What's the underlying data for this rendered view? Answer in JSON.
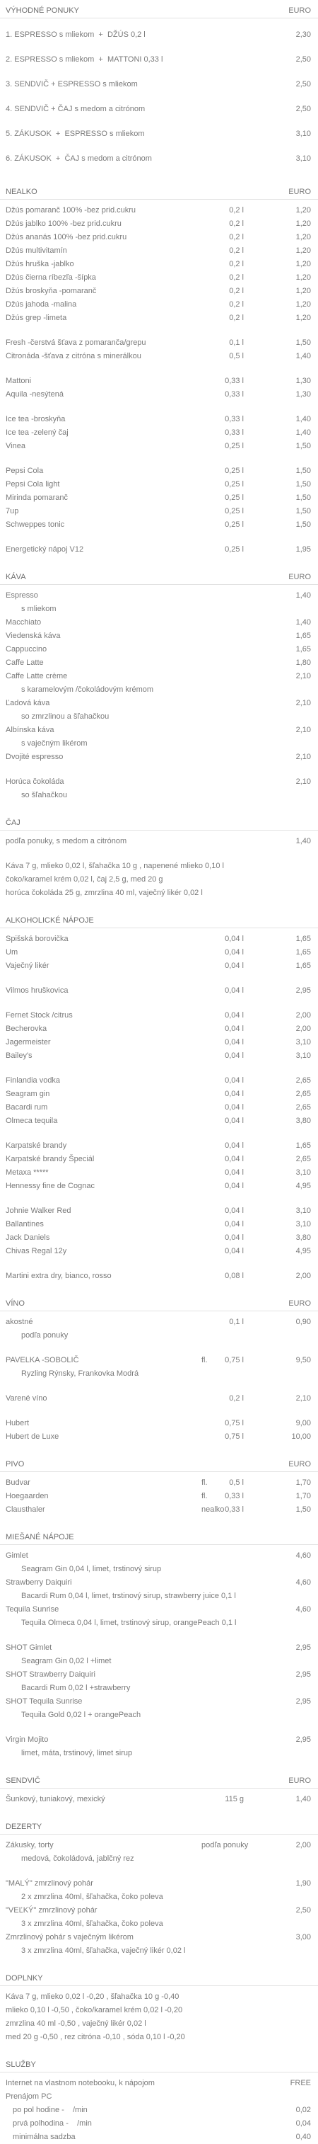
{
  "sections": [
    {
      "title": "VÝHODNÉ PONUKY",
      "currency": "EURO",
      "groups": [
        [
          {
            "name": "1. ESPRESSO s mliekom  +  DŽÚS 0,2 l",
            "price": "2,30"
          },
          {
            "name": "2. ESPRESSO s mliekom  +  MATTONI 0,33 l",
            "price": "2,50"
          },
          {
            "name": "3. SENDVIČ + ESPRESSO s mliekom",
            "price": "2,50"
          },
          {
            "name": "4. SENDVIČ + ČAJ s medom a citrónom",
            "price": "2,50"
          },
          {
            "name": "5. ZÁKUSOK  +  ESPRESSO s mliekom",
            "price": "3,10"
          },
          {
            "name": "6. ZÁKUSOK  +  ČAJ s medom a citrónom",
            "price": "3,10"
          }
        ]
      ]
    },
    {
      "title": "NEALKO",
      "currency": "EURO",
      "groups": [
        [
          {
            "name": "Džús pomaranč 100% -bez prid.cukru",
            "size": "0,2 l",
            "price": "1,20"
          },
          {
            "name": "Džús jablko 100% -bez prid.cukru",
            "size": "0,2 l",
            "price": "1,20"
          },
          {
            "name": "Džús ananás 100% -bez prid.cukru",
            "size": "0,2 l",
            "price": "1,20"
          },
          {
            "name": "Džús multivitamín",
            "size": "0,2 l",
            "price": "1,20"
          },
          {
            "name": "Džús hruška -jablko",
            "size": "0,2 l",
            "price": "1,20"
          },
          {
            "name": "Džús čierna ríbezľa -šípka",
            "size": "0,2 l",
            "price": "1,20"
          },
          {
            "name": "Džús broskyňa -pomaranč",
            "size": "0,2 l",
            "price": "1,20"
          },
          {
            "name": "Džús jahoda -malina",
            "size": "0,2 l",
            "price": "1,20"
          },
          {
            "name": "Džús grep -limeta",
            "size": "0,2 l",
            "price": "1,20"
          }
        ],
        [
          {
            "name": "Fresh -čerstvá šťava z pomaranča/grepu",
            "size": "0,1 l",
            "price": "1,50"
          },
          {
            "name": "Citronáda -šťava z citróna s minerálkou",
            "size": "0,5 l",
            "price": "1,40"
          }
        ],
        [
          {
            "name": "Mattoni",
            "size": "0,33 l",
            "price": "1,30"
          },
          {
            "name": "Aquila -nesýtená",
            "size": "0,33 l",
            "price": "1,30"
          }
        ],
        [
          {
            "name": "Ice tea -broskyňa",
            "size": "0,33 l",
            "price": "1,40"
          },
          {
            "name": "Ice tea -zelený čaj",
            "size": "0,33 l",
            "price": "1,40"
          },
          {
            "name": "Vinea",
            "size": "0,25 l",
            "price": "1,50"
          }
        ],
        [
          {
            "name": "Pepsi Cola",
            "size": "0,25 l",
            "price": "1,50"
          },
          {
            "name": "Pepsi Cola light",
            "size": "0,25 l",
            "price": "1,50"
          },
          {
            "name": "Mirinda pomaranč",
            "size": "0,25 l",
            "price": "1,50"
          },
          {
            "name": "7up",
            "size": "0,25 l",
            "price": "1,50"
          },
          {
            "name": "Schweppes tonic",
            "size": "0,25 l",
            "price": "1,50"
          }
        ],
        [
          {
            "name": "Energetický nápoj V12",
            "size": "0,25 l",
            "price": "1,95"
          }
        ]
      ]
    },
    {
      "title": "KÁVA",
      "currency": "EURO",
      "groups": [
        [
          {
            "name": "Espresso",
            "price": "1,40",
            "notes": [
              "s mliekom"
            ]
          },
          {
            "name": "Macchiato",
            "price": "1,40"
          },
          {
            "name": "Viedenská káva",
            "price": "1,65"
          },
          {
            "name": "Cappuccino",
            "price": "1,65"
          },
          {
            "name": "Caffe Latte",
            "price": "1,80"
          },
          {
            "name": "Caffe Latte crème",
            "price": "2,10",
            "notes": [
              "s karamelovým /čokoládovým krémom"
            ]
          },
          {
            "name": "Ľadová káva",
            "price": "2,10",
            "notes": [
              "so zmrzlinou a šľahačkou"
            ]
          },
          {
            "name": "Albínska káva",
            "price": "2,10",
            "notes": [
              "s vaječným likérom"
            ]
          },
          {
            "name": "Dvojité espresso",
            "price": "2,10"
          }
        ],
        [
          {
            "name": "Horúca čokoláda",
            "price": "2,10",
            "notes": [
              "so šľahačkou"
            ]
          }
        ]
      ]
    },
    {
      "title": "ČAJ",
      "groups": [
        [
          {
            "name": "podľa ponuky, s medom a citrónom",
            "price": "1,40"
          }
        ],
        [
          {
            "name": "Káva 7 g, mlieko 0,02 l, šľahačka 10 g , napenené mlieko 0,10 l"
          },
          {
            "name": "čoko/karamel krém 0,02 l, čaj 2,5 g, med 20 g"
          },
          {
            "name": "horúca čokoláda 25 g, zmrzlina 40 ml, vaječný likér 0,02 l"
          }
        ]
      ]
    },
    {
      "title": "ALKOHOLICKÉ NÁPOJE",
      "groups": [
        [
          {
            "name": "Spišská borovička",
            "size": "0,04 l",
            "price": "1,65"
          },
          {
            "name": "Um",
            "size": "0,04 l",
            "price": "1,65"
          },
          {
            "name": "Vaječný likér",
            "size": "0,04 l",
            "price": "1,65"
          }
        ],
        [
          {
            "name": "Vilmos hruškovica",
            "size": "0,04 l",
            "price": "2,95"
          }
        ],
        [
          {
            "name": "Fernet Stock /citrus",
            "size": "0,04 l",
            "price": "2,00"
          },
          {
            "name": "Becherovka",
            "size": "0,04 l",
            "price": "2,00"
          },
          {
            "name": "Jagermeister",
            "size": "0,04 l",
            "price": "3,10"
          },
          {
            "name": "Bailey's",
            "size": "0,04 l",
            "price": "3,10"
          }
        ],
        [
          {
            "name": "Finlandia vodka",
            "size": "0,04 l",
            "price": "2,65"
          },
          {
            "name": "Seagram gin",
            "size": "0,04 l",
            "price": "2,65"
          },
          {
            "name": "Bacardi rum",
            "size": "0,04 l",
            "price": "2,65"
          },
          {
            "name": "Olmeca tequila",
            "size": "0,04 l",
            "price": "3,80"
          }
        ],
        [
          {
            "name": "Karpatské brandy",
            "size": "0,04 l",
            "price": "1,65"
          },
          {
            "name": "Karpatské brandy Špeciál",
            "size": "0,04 l",
            "price": "2,65"
          },
          {
            "name": "Metaxa *****",
            "size": "0,04 l",
            "price": "3,10"
          },
          {
            "name": "Hennessy fine de Cognac",
            "size": "0,04 l",
            "price": "4,95"
          }
        ],
        [
          {
            "name": "Johnie Walker Red",
            "size": "0,04 l",
            "price": "3,10"
          },
          {
            "name": "Ballantines",
            "size": "0,04 l",
            "price": "3,10"
          },
          {
            "name": "Jack Daniels",
            "size": "0,04 l",
            "price": "3,80"
          },
          {
            "name": "Chivas Regal 12y",
            "size": "0,04 l",
            "price": "4,95"
          }
        ],
        [
          {
            "name": "Martini extra dry, bianco, rosso",
            "size": "0,08 l",
            "price": "2,00"
          }
        ]
      ]
    },
    {
      "title": "VÍNO",
      "currency": "EURO",
      "groups": [
        [
          {
            "name": "akostné",
            "size": "0,1 l",
            "price": "0,90",
            "notes": [
              "podľa ponuky"
            ]
          }
        ],
        [
          {
            "name": "PAVELKA -SOBOLIČ",
            "qual": "fl.",
            "size": "0,75 l",
            "price": "9,50",
            "notes": [
              "Ryzling Rýnsky, Frankovka Modrá"
            ]
          }
        ],
        [
          {
            "name": "Varené víno",
            "size": "0,2 l",
            "price": "2,10"
          }
        ],
        [
          {
            "name": "Hubert",
            "size": "0,75 l",
            "price": "9,00"
          },
          {
            "name": "Hubert de Luxe",
            "size": "0,75 l",
            "price": "10,00"
          }
        ]
      ]
    },
    {
      "title": "PIVO",
      "currency": "EURO",
      "groups": [
        [
          {
            "name": "Budvar",
            "qual": "fl.",
            "size": "0,5 l",
            "price": "1,70"
          },
          {
            "name": "Hoegaarden",
            "qual": "fl.",
            "size": "0,33 l",
            "price": "1,70"
          },
          {
            "name": "Clausthaler",
            "qual": "nealko",
            "size": "0,33 l",
            "price": "1,50"
          }
        ]
      ]
    },
    {
      "title": "MIEŠANÉ NÁPOJE",
      "groups": [
        [
          {
            "name": "Gimlet",
            "price": "4,60",
            "notes": [
              "Seagram Gin 0,04 l, limet, trstinový sirup"
            ]
          },
          {
            "name": "Strawberry Daiquiri",
            "price": "4,60",
            "notes": [
              "Bacardi Rum 0,04 l, limet, trstinový sirup, strawberry juice 0,1 l"
            ]
          },
          {
            "name": "Tequila Sunrise",
            "price": "4,60",
            "notes": [
              "Tequila Olmeca 0,04 l, limet, trstinový sirup, orangePeach 0,1 l"
            ]
          }
        ],
        [
          {
            "name": "SHOT Gimlet",
            "price": "2,95",
            "notes": [
              "Seagram Gin 0,02 l +limet"
            ]
          },
          {
            "name": "SHOT Strawberry Daiquiri",
            "price": "2,95",
            "notes": [
              "Bacardi Rum 0,02 l +strawberry"
            ]
          },
          {
            "name": "SHOT Tequila Sunrise",
            "price": "2,95",
            "notes": [
              "Tequila Gold 0,02 l + orangePeach"
            ]
          }
        ],
        [
          {
            "name": "Virgin Mojito",
            "price": "2,95",
            "notes": [
              "limet, máta, trstinový, limet sirup"
            ]
          }
        ]
      ]
    },
    {
      "title": "SENDVIČ",
      "currency": "EURO",
      "groups": [
        [
          {
            "name": "Šunkový, tuniakový, mexický",
            "size": "115 g",
            "price": "1,40"
          }
        ]
      ]
    },
    {
      "title": "DEZERTY",
      "groups": [
        [
          {
            "name": "Zákusky, torty",
            "qual": "podľa ponuky",
            "price": "2,00",
            "notes": [
              "medová, čokoládová, jablčný rez"
            ]
          }
        ],
        [
          {
            "name": "\"MALÝ\" zmrzlinový pohár",
            "price": "1,90",
            "notes": [
              "2 x zmrzlina 40ml, šľahačka, čoko poleva"
            ]
          },
          {
            "name": "\"VEĽKÝ\" zmrzlinový pohár",
            "price": "2,50",
            "notes": [
              "3 x zmrzlina 40ml, šľahačka, čoko poleva"
            ]
          },
          {
            "name": "Zmrzlinový pohár s vaječným likérom",
            "price": "3,00",
            "notes": [
              "3 x zmrzlina 40ml, šľahačka, vaječný likér 0,02 l"
            ]
          }
        ]
      ]
    },
    {
      "title": "DOPLNKY",
      "groups": [
        [
          {
            "name": "Káva 7 g, mlieko 0,02 l -0,20 , šľahačka 10 g -0,40"
          },
          {
            "name": "mlieko 0,10 l -0,50 , čoko/karamel krém 0,02 l -0,20"
          },
          {
            "name": "zmrzlina 40 ml -0,50 , vaječný likér 0,02 l"
          },
          {
            "name": "med 20 g -0,50 , rez citróna -0,10 , sóda 0,10 l -0,20"
          }
        ]
      ]
    },
    {
      "title": "SLUŽBY",
      "groups": [
        [
          {
            "name": "Internet na vlastnom notebooku, k nápojom",
            "price": "FREE"
          },
          {
            "name": "Prenájom PC",
            "sub": [
              {
                "name": "po pol hodine -    /min",
                "price": "0,02"
              },
              {
                "name": "prvá polhodina -    /min",
                "price": "0,04"
              },
              {
                "name": "minimálna sadzba",
                "price": "0,40"
              }
            ]
          }
        ]
      ]
    }
  ]
}
